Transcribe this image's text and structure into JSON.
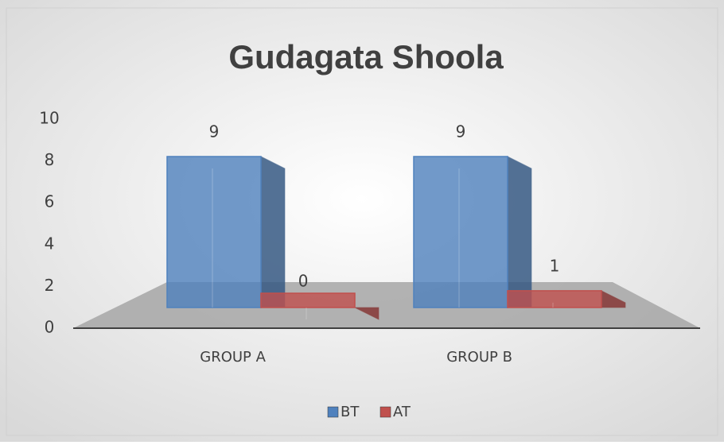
{
  "chart_data": {
    "type": "bar3d",
    "title": "Gudagata Shoola",
    "categories": [
      "GROUP A",
      "GROUP B"
    ],
    "series": [
      {
        "name": "BT",
        "color": "#4f81bd",
        "values": [
          9,
          9
        ]
      },
      {
        "name": "AT",
        "color": "#c0504d",
        "values": [
          0,
          1
        ]
      }
    ],
    "ylim": [
      0,
      10
    ],
    "yticks": [
      0,
      2,
      4,
      6,
      8,
      10
    ],
    "grid": false,
    "legend": "bottom"
  }
}
